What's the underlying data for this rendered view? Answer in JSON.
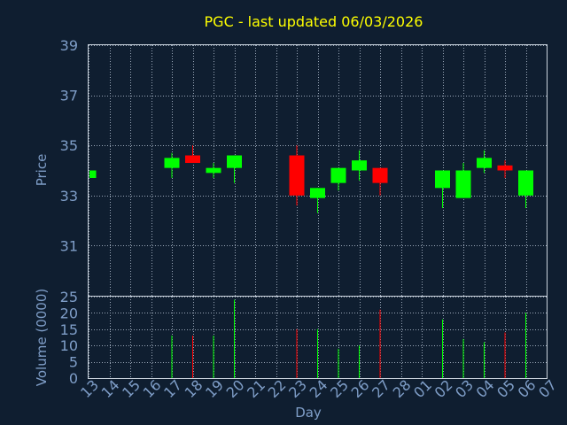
{
  "chart_data": {
    "type": "candlestick",
    "title": "PGC - last updated 06/03/2026",
    "xlabel": "Day",
    "ylabel_price": "Price",
    "ylabel_volume": "Volume (0000)",
    "x_ticks": [
      "13",
      "14",
      "15",
      "16",
      "17",
      "18",
      "19",
      "20",
      "21",
      "22",
      "23",
      "24",
      "25",
      "26",
      "27",
      "28",
      "01",
      "02",
      "03",
      "04",
      "05",
      "06",
      "07"
    ],
    "price_ticks": [
      31,
      33,
      35,
      37,
      39
    ],
    "price_range": [
      29,
      39
    ],
    "volume_ticks": [
      0,
      5,
      10,
      15,
      20,
      25
    ],
    "volume_range": [
      0,
      25
    ],
    "grid": true,
    "colors": {
      "up": "#00ff00",
      "down": "#ff0000",
      "background": "#0f1e30",
      "title": "#ffff00",
      "axis_text": "#7f9ec8"
    },
    "candles": [
      {
        "day": "13",
        "open": 33.7,
        "close": 34.0,
        "high": 34.0,
        "low": 33.7,
        "volume": 0
      },
      {
        "day": "17",
        "open": 34.1,
        "close": 34.5,
        "high": 34.7,
        "low": 33.7,
        "volume": 13
      },
      {
        "day": "18",
        "open": 34.6,
        "close": 34.3,
        "high": 35.0,
        "low": 34.3,
        "volume": 13
      },
      {
        "day": "19",
        "open": 33.9,
        "close": 34.1,
        "high": 34.3,
        "low": 33.7,
        "volume": 13
      },
      {
        "day": "20",
        "open": 34.1,
        "close": 34.6,
        "high": 34.6,
        "low": 33.5,
        "volume": 24
      },
      {
        "day": "23",
        "open": 34.6,
        "close": 33.0,
        "high": 35.0,
        "low": 32.6,
        "volume": 15
      },
      {
        "day": "24",
        "open": 32.9,
        "close": 33.3,
        "high": 33.3,
        "low": 32.3,
        "volume": 15
      },
      {
        "day": "25",
        "open": 33.5,
        "close": 34.1,
        "high": 34.1,
        "low": 33.2,
        "volume": 9
      },
      {
        "day": "26",
        "open": 34.0,
        "close": 34.4,
        "high": 34.8,
        "low": 33.6,
        "volume": 10
      },
      {
        "day": "27",
        "open": 34.1,
        "close": 33.5,
        "high": 34.1,
        "low": 33.0,
        "volume": 21
      },
      {
        "day": "02",
        "open": 33.3,
        "close": 34.0,
        "high": 34.0,
        "low": 32.5,
        "volume": 18
      },
      {
        "day": "03",
        "open": 32.9,
        "close": 34.0,
        "high": 34.3,
        "low": 32.9,
        "volume": 12
      },
      {
        "day": "04",
        "open": 34.1,
        "close": 34.5,
        "high": 34.8,
        "low": 33.9,
        "volume": 11
      },
      {
        "day": "05",
        "open": 34.2,
        "close": 34.0,
        "high": 34.4,
        "low": 33.7,
        "volume": 14
      },
      {
        "day": "06",
        "open": 33.0,
        "close": 34.0,
        "high": 34.0,
        "low": 32.5,
        "volume": 20
      }
    ]
  }
}
